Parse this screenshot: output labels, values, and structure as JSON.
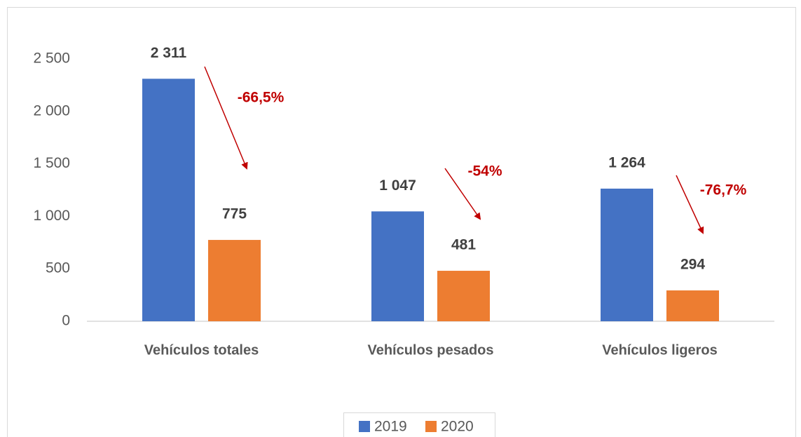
{
  "chart_data": {
    "type": "bar",
    "categories": [
      "Vehículos totales",
      "Vehículos pesados",
      "Vehículos ligeros"
    ],
    "series": [
      {
        "name": "2019",
        "color": "#4472c4",
        "values": [
          2311,
          1047,
          1264
        ],
        "value_labels": [
          "2 311",
          "1 047",
          "1 264"
        ]
      },
      {
        "name": "2020",
        "color": "#ed7d31",
        "values": [
          775,
          481,
          294
        ]
      }
    ],
    "annotations": [
      "-66,5%",
      "-54%",
      "-76,7%"
    ],
    "annotation_color": "#c00000",
    "ylim": [
      0,
      2500
    ],
    "yticks": [
      0,
      500,
      {
        "value": 1000,
        "label": "1 000"
      },
      {
        "value": 1500,
        "label": "1 500"
      },
      {
        "value": 2000,
        "label": "2 000"
      },
      {
        "value": 2500,
        "label": "2 500"
      }
    ],
    "legend": "bottom"
  }
}
